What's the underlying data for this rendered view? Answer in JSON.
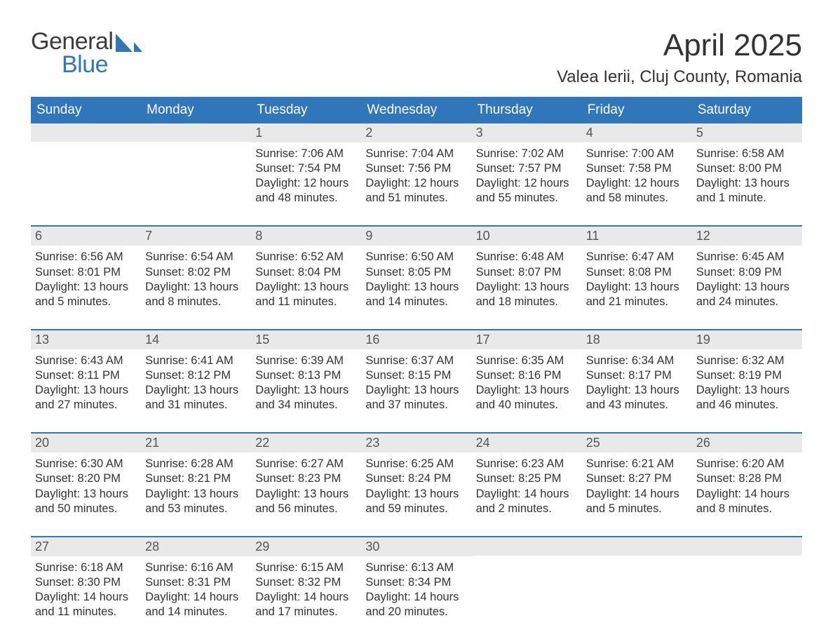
{
  "logo": {
    "word1": "General",
    "word2": "Blue",
    "accent_color": "#2f76bb"
  },
  "title": {
    "month": "April 2025",
    "location": "Valea Ierii, Cluj County, Romania"
  },
  "colors": {
    "header_bg": "#2f76bb",
    "header_text": "#ffffff",
    "band_bg": "#e9e9e9",
    "body_text": "#333333",
    "page_bg": "#ffffff",
    "week_divider": "#2f76bb"
  },
  "typography": {
    "title_fontsize": 44,
    "location_fontsize": 24,
    "weekday_fontsize": 19,
    "daynum_fontsize": 18,
    "body_fontsize": 16.5,
    "family": "Arial"
  },
  "weekdays": [
    "Sunday",
    "Monday",
    "Tuesday",
    "Wednesday",
    "Thursday",
    "Friday",
    "Saturday"
  ],
  "weeks": [
    [
      {
        "day": "",
        "sunrise": "",
        "sunset": "",
        "daylight": ""
      },
      {
        "day": "",
        "sunrise": "",
        "sunset": "",
        "daylight": ""
      },
      {
        "day": "1",
        "sunrise": "Sunrise: 7:06 AM",
        "sunset": "Sunset: 7:54 PM",
        "daylight": "Daylight: 12 hours and 48 minutes."
      },
      {
        "day": "2",
        "sunrise": "Sunrise: 7:04 AM",
        "sunset": "Sunset: 7:56 PM",
        "daylight": "Daylight: 12 hours and 51 minutes."
      },
      {
        "day": "3",
        "sunrise": "Sunrise: 7:02 AM",
        "sunset": "Sunset: 7:57 PM",
        "daylight": "Daylight: 12 hours and 55 minutes."
      },
      {
        "day": "4",
        "sunrise": "Sunrise: 7:00 AM",
        "sunset": "Sunset: 7:58 PM",
        "daylight": "Daylight: 12 hours and 58 minutes."
      },
      {
        "day": "5",
        "sunrise": "Sunrise: 6:58 AM",
        "sunset": "Sunset: 8:00 PM",
        "daylight": "Daylight: 13 hours and 1 minute."
      }
    ],
    [
      {
        "day": "6",
        "sunrise": "Sunrise: 6:56 AM",
        "sunset": "Sunset: 8:01 PM",
        "daylight": "Daylight: 13 hours and 5 minutes."
      },
      {
        "day": "7",
        "sunrise": "Sunrise: 6:54 AM",
        "sunset": "Sunset: 8:02 PM",
        "daylight": "Daylight: 13 hours and 8 minutes."
      },
      {
        "day": "8",
        "sunrise": "Sunrise: 6:52 AM",
        "sunset": "Sunset: 8:04 PM",
        "daylight": "Daylight: 13 hours and 11 minutes."
      },
      {
        "day": "9",
        "sunrise": "Sunrise: 6:50 AM",
        "sunset": "Sunset: 8:05 PM",
        "daylight": "Daylight: 13 hours and 14 minutes."
      },
      {
        "day": "10",
        "sunrise": "Sunrise: 6:48 AM",
        "sunset": "Sunset: 8:07 PM",
        "daylight": "Daylight: 13 hours and 18 minutes."
      },
      {
        "day": "11",
        "sunrise": "Sunrise: 6:47 AM",
        "sunset": "Sunset: 8:08 PM",
        "daylight": "Daylight: 13 hours and 21 minutes."
      },
      {
        "day": "12",
        "sunrise": "Sunrise: 6:45 AM",
        "sunset": "Sunset: 8:09 PM",
        "daylight": "Daylight: 13 hours and 24 minutes."
      }
    ],
    [
      {
        "day": "13",
        "sunrise": "Sunrise: 6:43 AM",
        "sunset": "Sunset: 8:11 PM",
        "daylight": "Daylight: 13 hours and 27 minutes."
      },
      {
        "day": "14",
        "sunrise": "Sunrise: 6:41 AM",
        "sunset": "Sunset: 8:12 PM",
        "daylight": "Daylight: 13 hours and 31 minutes."
      },
      {
        "day": "15",
        "sunrise": "Sunrise: 6:39 AM",
        "sunset": "Sunset: 8:13 PM",
        "daylight": "Daylight: 13 hours and 34 minutes."
      },
      {
        "day": "16",
        "sunrise": "Sunrise: 6:37 AM",
        "sunset": "Sunset: 8:15 PM",
        "daylight": "Daylight: 13 hours and 37 minutes."
      },
      {
        "day": "17",
        "sunrise": "Sunrise: 6:35 AM",
        "sunset": "Sunset: 8:16 PM",
        "daylight": "Daylight: 13 hours and 40 minutes."
      },
      {
        "day": "18",
        "sunrise": "Sunrise: 6:34 AM",
        "sunset": "Sunset: 8:17 PM",
        "daylight": "Daylight: 13 hours and 43 minutes."
      },
      {
        "day": "19",
        "sunrise": "Sunrise: 6:32 AM",
        "sunset": "Sunset: 8:19 PM",
        "daylight": "Daylight: 13 hours and 46 minutes."
      }
    ],
    [
      {
        "day": "20",
        "sunrise": "Sunrise: 6:30 AM",
        "sunset": "Sunset: 8:20 PM",
        "daylight": "Daylight: 13 hours and 50 minutes."
      },
      {
        "day": "21",
        "sunrise": "Sunrise: 6:28 AM",
        "sunset": "Sunset: 8:21 PM",
        "daylight": "Daylight: 13 hours and 53 minutes."
      },
      {
        "day": "22",
        "sunrise": "Sunrise: 6:27 AM",
        "sunset": "Sunset: 8:23 PM",
        "daylight": "Daylight: 13 hours and 56 minutes."
      },
      {
        "day": "23",
        "sunrise": "Sunrise: 6:25 AM",
        "sunset": "Sunset: 8:24 PM",
        "daylight": "Daylight: 13 hours and 59 minutes."
      },
      {
        "day": "24",
        "sunrise": "Sunrise: 6:23 AM",
        "sunset": "Sunset: 8:25 PM",
        "daylight": "Daylight: 14 hours and 2 minutes."
      },
      {
        "day": "25",
        "sunrise": "Sunrise: 6:21 AM",
        "sunset": "Sunset: 8:27 PM",
        "daylight": "Daylight: 14 hours and 5 minutes."
      },
      {
        "day": "26",
        "sunrise": "Sunrise: 6:20 AM",
        "sunset": "Sunset: 8:28 PM",
        "daylight": "Daylight: 14 hours and 8 minutes."
      }
    ],
    [
      {
        "day": "27",
        "sunrise": "Sunrise: 6:18 AM",
        "sunset": "Sunset: 8:30 PM",
        "daylight": "Daylight: 14 hours and 11 minutes."
      },
      {
        "day": "28",
        "sunrise": "Sunrise: 6:16 AM",
        "sunset": "Sunset: 8:31 PM",
        "daylight": "Daylight: 14 hours and 14 minutes."
      },
      {
        "day": "29",
        "sunrise": "Sunrise: 6:15 AM",
        "sunset": "Sunset: 8:32 PM",
        "daylight": "Daylight: 14 hours and 17 minutes."
      },
      {
        "day": "30",
        "sunrise": "Sunrise: 6:13 AM",
        "sunset": "Sunset: 8:34 PM",
        "daylight": "Daylight: 14 hours and 20 minutes."
      },
      {
        "day": "",
        "sunrise": "",
        "sunset": "",
        "daylight": ""
      },
      {
        "day": "",
        "sunrise": "",
        "sunset": "",
        "daylight": ""
      },
      {
        "day": "",
        "sunrise": "",
        "sunset": "",
        "daylight": ""
      }
    ]
  ]
}
